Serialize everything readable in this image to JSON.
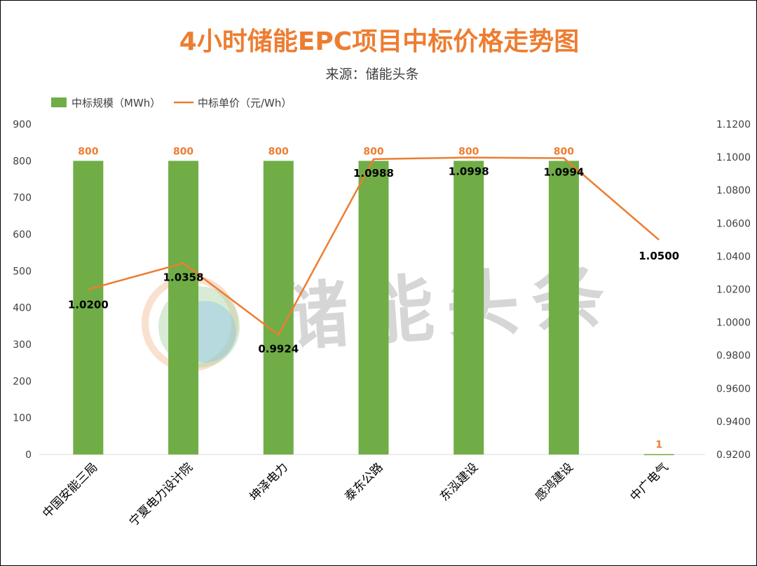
{
  "chart_data": {
    "type": "bar",
    "title": "4小时储能EPC项目中标价格走势图",
    "subtitle": "来源：储能头条",
    "watermark": "储能头条",
    "categories": [
      "中国安能三局",
      "宁夏电力设计院",
      "坤泽电力",
      "泰东公路",
      "东泓建设",
      "感鸿建设",
      "中广电气"
    ],
    "series": [
      {
        "name": "中标规模（MWh）",
        "type": "bar",
        "axis": "left",
        "color": "#70ad47",
        "label_color": "#ed7d31",
        "values": [
          800,
          800,
          800,
          800,
          800,
          800,
          1
        ],
        "labels": [
          "800",
          "800",
          "800",
          "800",
          "800",
          "800",
          "1"
        ]
      },
      {
        "name": "中标单价（元/Wh）",
        "type": "line",
        "axis": "right",
        "color": "#ed7d31",
        "label_color": "#000000",
        "values": [
          1.02,
          1.0358,
          0.9924,
          1.0988,
          1.0998,
          1.0994,
          1.05
        ],
        "labels": [
          "1.0200",
          "1.0358",
          "0.9924",
          "1.0988",
          "1.0998",
          "1.0994",
          "1.0500"
        ]
      }
    ],
    "y_left": {
      "min": 0,
      "max": 900,
      "step": 100,
      "ticks": [
        "0",
        "100",
        "200",
        "300",
        "400",
        "500",
        "600",
        "700",
        "800",
        "900"
      ]
    },
    "y_right": {
      "min": 0.92,
      "max": 1.12,
      "step": 0.02,
      "ticks": [
        "0.9200",
        "0.9400",
        "0.9600",
        "0.9800",
        "1.0000",
        "1.0200",
        "1.0400",
        "1.0600",
        "1.0800",
        "1.1000",
        "1.1200"
      ]
    },
    "grid": false,
    "legend_position": "top-left",
    "title_color": "#ed7d31"
  }
}
